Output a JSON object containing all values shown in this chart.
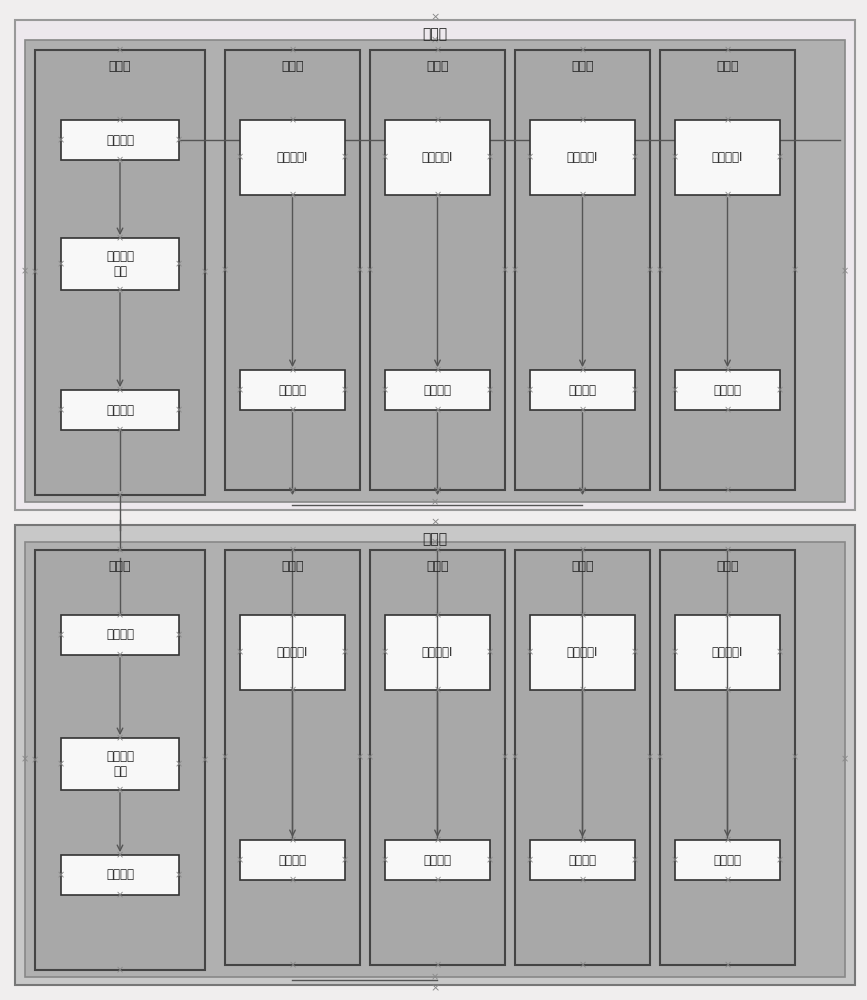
{
  "title_main": "主系统",
  "title_backup": "备系统",
  "bg_color": "#f0eeee",
  "main_outer_fill": "#ede8ed",
  "main_outer_edge": "#999999",
  "backup_outer_fill": "#c8c8c8",
  "backup_outer_edge": "#777777",
  "inner_fill": "#b0b0b0",
  "inner_edge": "#888888",
  "panel_fill": "#a8a8a8",
  "panel_edge": "#444444",
  "box_fill": "#f8f8f8",
  "box_edge": "#333333",
  "x_color": "#888888",
  "arrow_color": "#555555",
  "text_color": "#222222",
  "x_marker": "×",
  "labels": {
    "master_board": "主控板",
    "service_board": "业务板",
    "service_module1": "业务模块I",
    "inter_comm": "板间通讯",
    "hot_reg": "热备份注\n册表",
    "hot_module": "热备模块"
  }
}
